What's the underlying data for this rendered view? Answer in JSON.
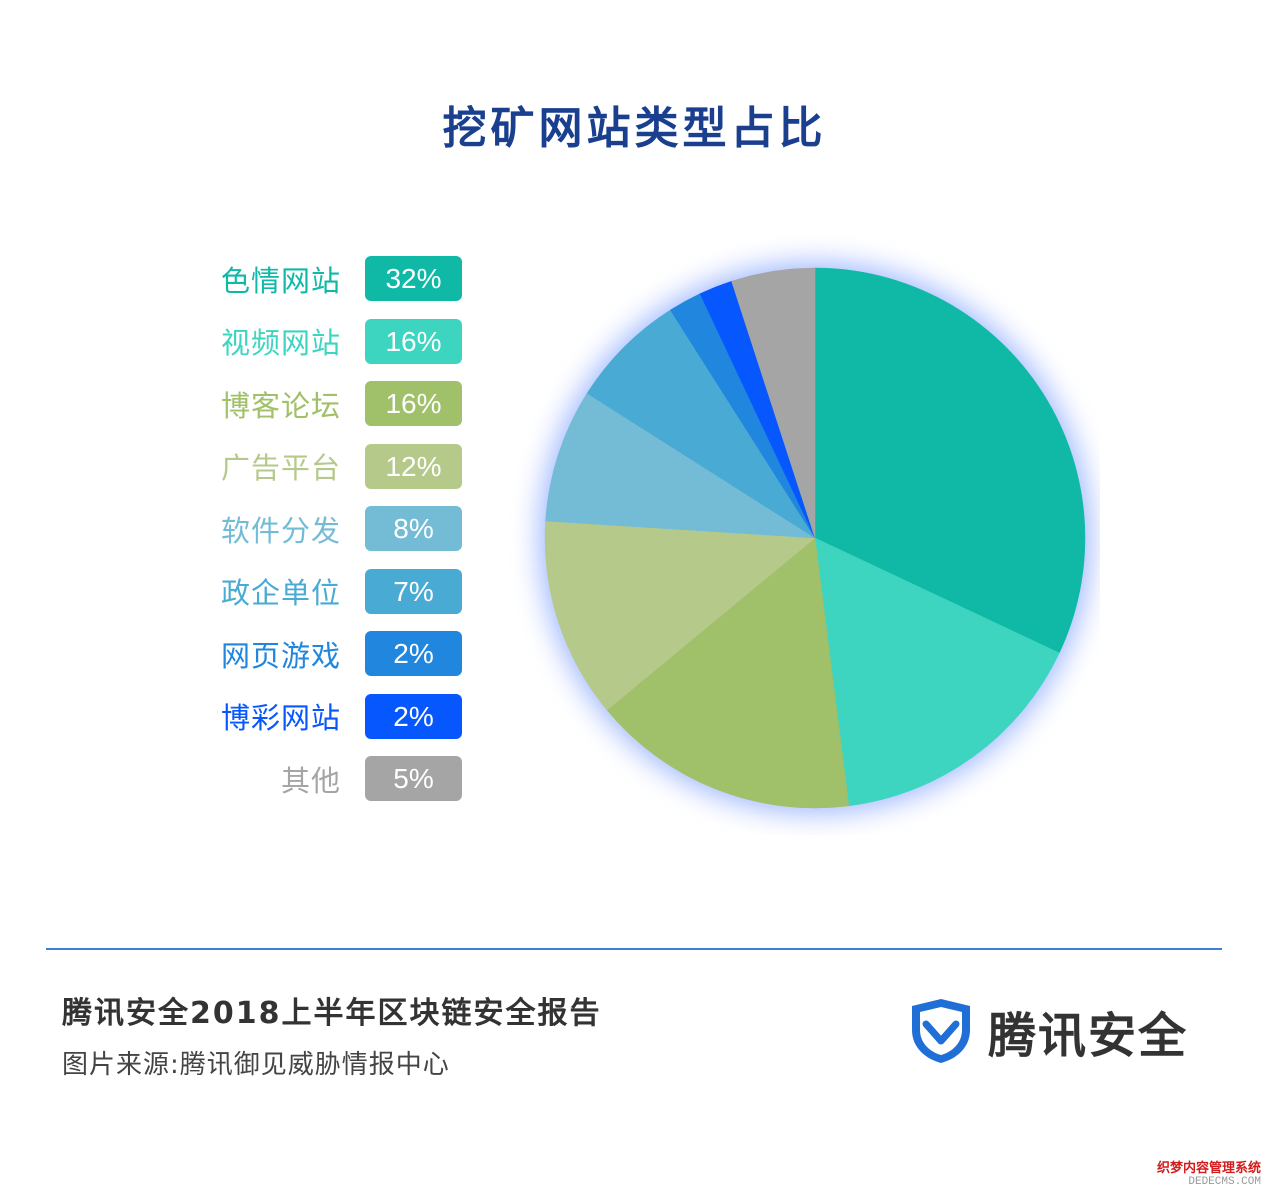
{
  "title": "挖矿网站类型占比",
  "chart_data": {
    "type": "pie",
    "title": "挖矿网站类型占比",
    "categories": [
      "色情网站",
      "视频网站",
      "博客论坛",
      "广告平台",
      "软件分发",
      "政企单位",
      "网页游戏",
      "博彩网站",
      "其他"
    ],
    "values": [
      32,
      16,
      16,
      12,
      8,
      7,
      2,
      2,
      5
    ],
    "value_labels": [
      "32%",
      "16%",
      "16%",
      "12%",
      "8%",
      "7%",
      "2%",
      "2%",
      "5%"
    ],
    "colors": [
      "#10b9a6",
      "#3dd5c0",
      "#a0c06a",
      "#b5c98a",
      "#74bcd6",
      "#49aad4",
      "#2186de",
      "#0757ff",
      "#a5a5a5"
    ],
    "legend_placement": "left"
  },
  "footer": {
    "report_title": "腾讯安全2018上半年区块链安全报告",
    "source": "图片来源:腾讯御见威胁情报中心",
    "brand_name": "腾讯安全"
  },
  "watermark": {
    "cn": "织梦内容管理系统",
    "en": "DEDECMS.COM"
  },
  "colors": {
    "title": "#1a3f8f",
    "divider": "#3b82d6",
    "brand_blue": "#1f6fd6"
  },
  "icons": {
    "brand_logo": "shield-check-icon"
  }
}
